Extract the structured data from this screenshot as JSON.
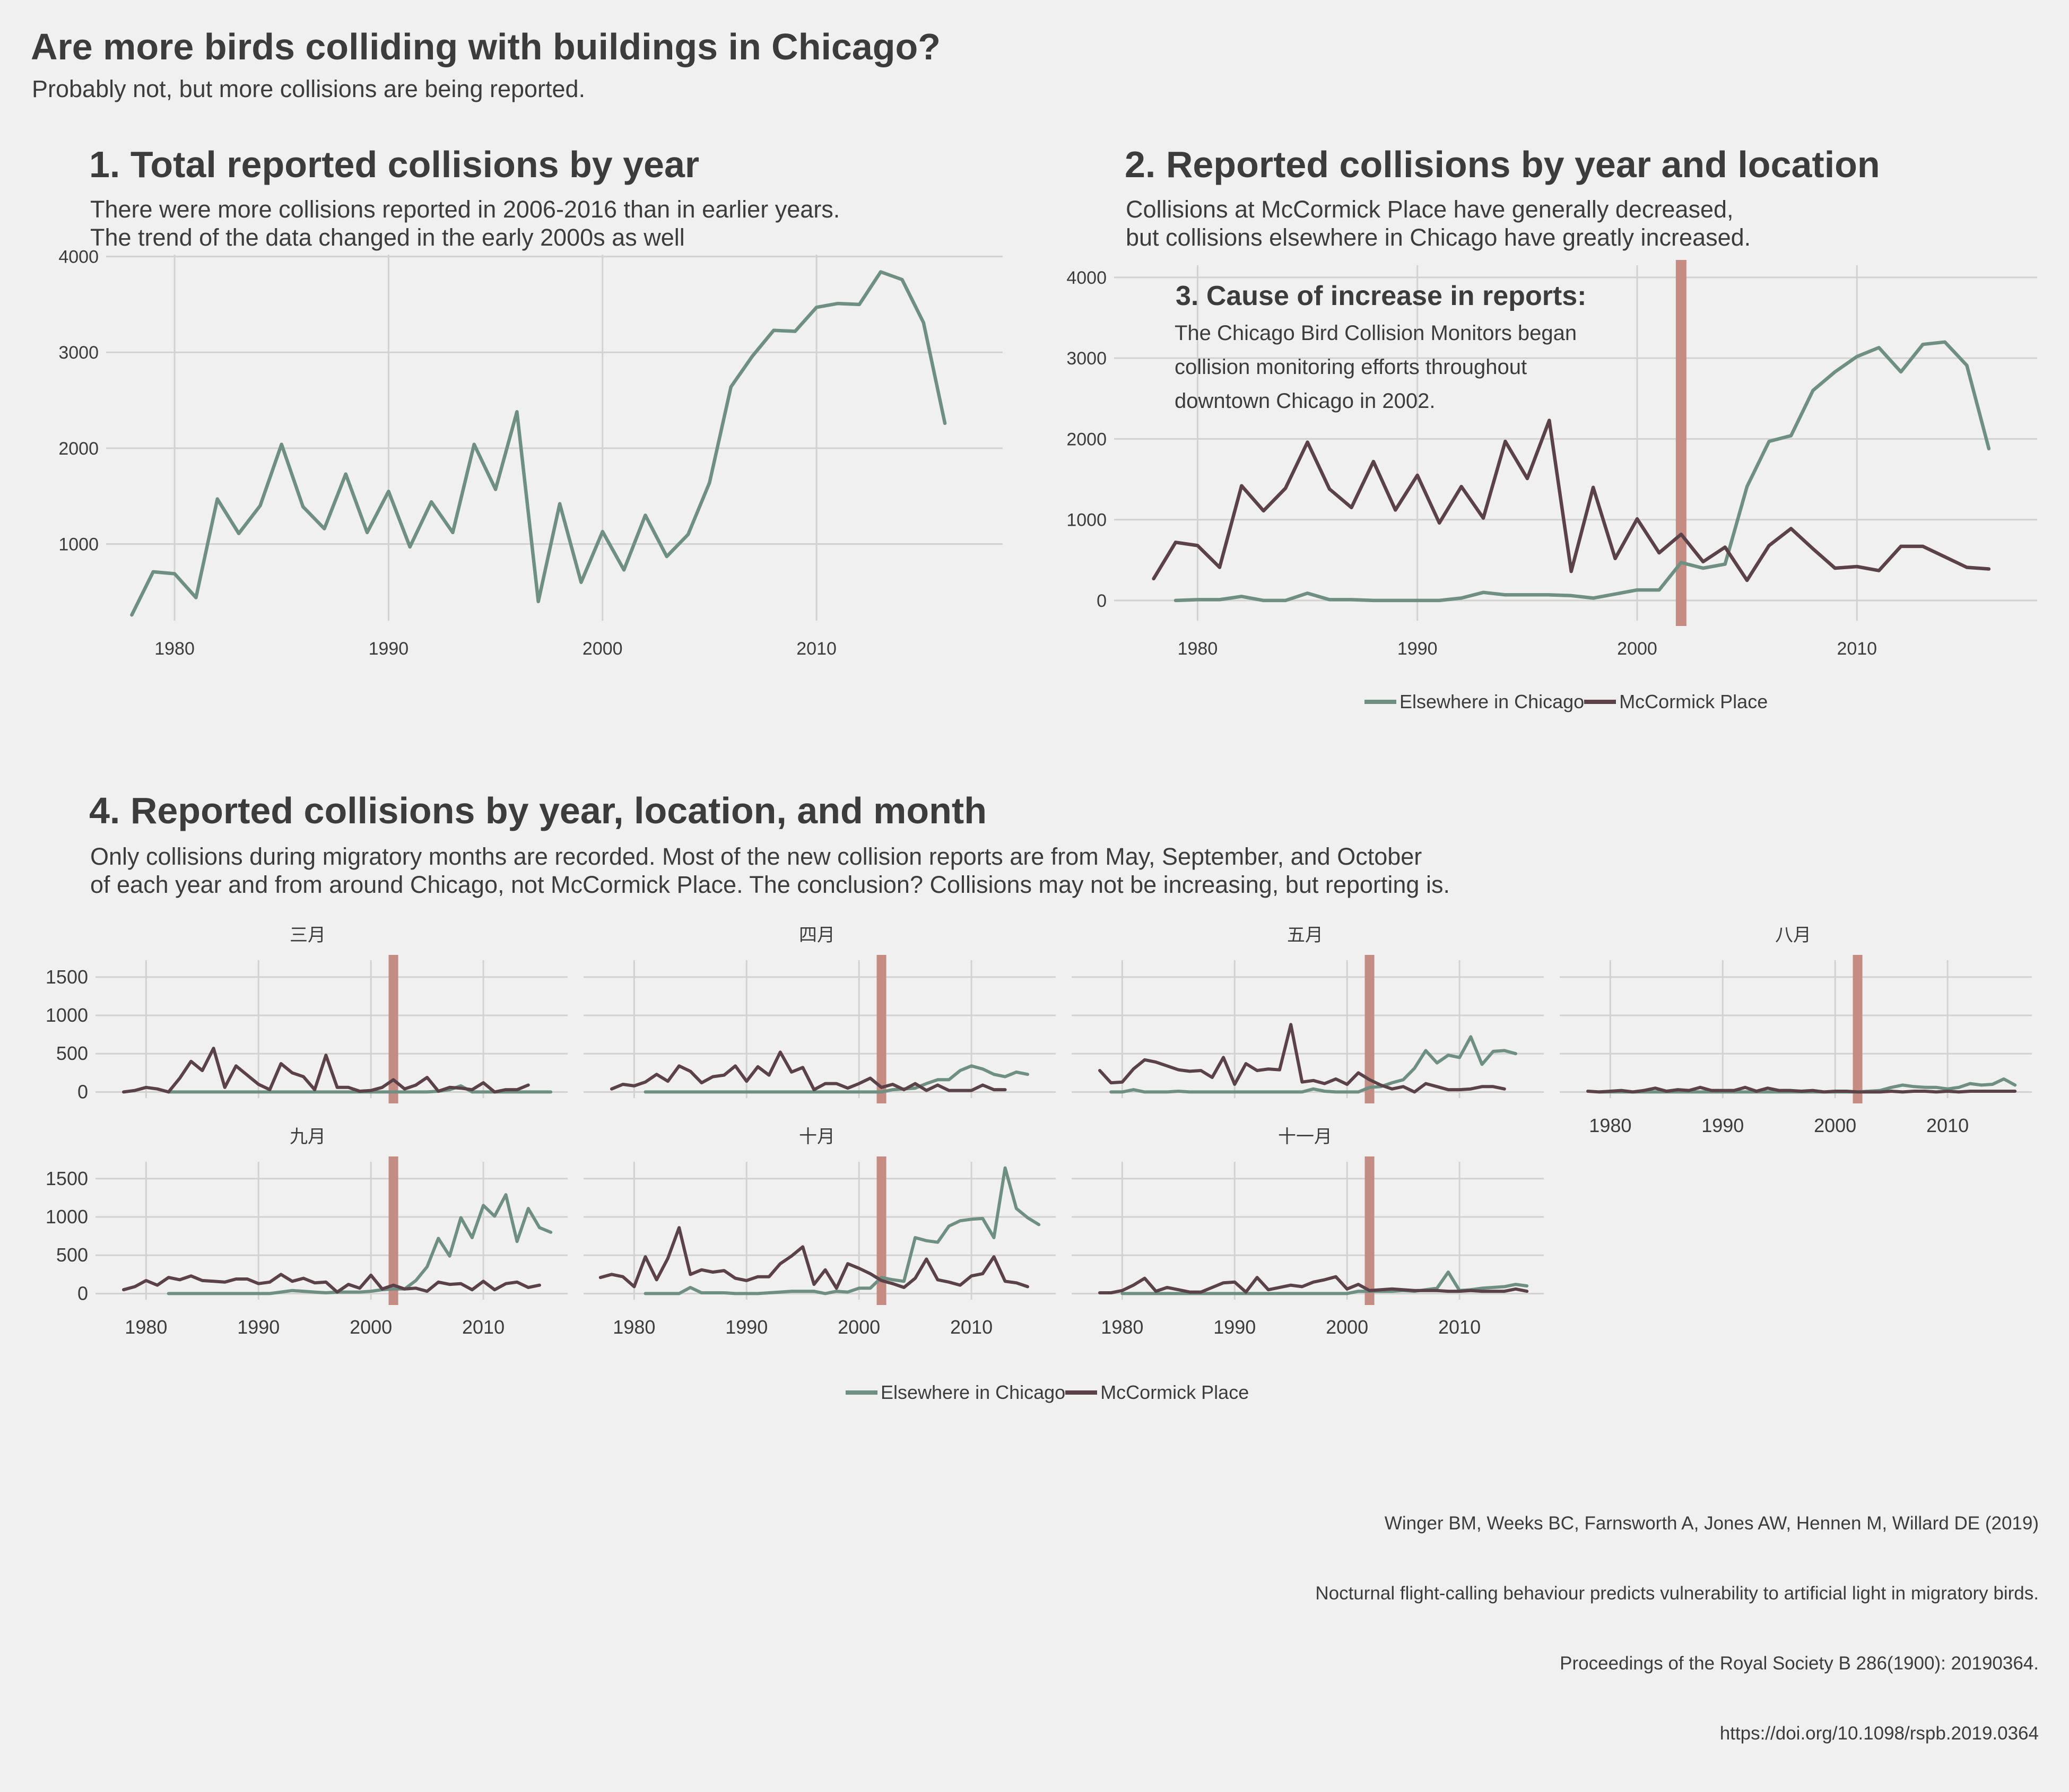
{
  "header": {
    "title": "Are more birds colliding with buildings in Chicago?",
    "subtitle": "Probably not, but more collisions are being reported."
  },
  "colors": {
    "elsewhere": "#6e8f82",
    "mccormick": "#5a4248",
    "highlight": "#c58c84",
    "grid": "#d2d2d2",
    "background": "#f0f0f0"
  },
  "panel1": {
    "title": "1. Total reported collisions by year",
    "subtitle_line1": "There were more collisions reported in 2006-2016 than in earlier years.",
    "subtitle_line2": "The trend of the data changed in the early 2000s as well"
  },
  "panel2": {
    "title": "2. Reported collisions by year and location",
    "subtitle_line1": "Collisions at McCormick Place have generally decreased,",
    "subtitle_line2": "but collisions elsewhere in Chicago have greatly increased.",
    "annotation_title": "3. Cause of increase in reports:",
    "annotation_line1": "The Chicago Bird Collision Monitors began",
    "annotation_line2": "collision monitoring efforts throughout",
    "annotation_line3": "downtown Chicago in 2002."
  },
  "panel4": {
    "title": "4. Reported collisions by year, location, and month",
    "subtitle_line1": "Only collisions during migratory months are recorded. Most of the new collision reports are from May, September, and October",
    "subtitle_line2": "of each year and from around Chicago, not McCormick Place. The conclusion? Collisions may not be increasing, but reporting is."
  },
  "legend": {
    "elsewhere": "Elsewhere in Chicago",
    "mccormick": "McCormick Place"
  },
  "citation": {
    "line1": "Winger BM, Weeks BC, Farnsworth A, Jones AW, Hennen M, Willard DE (2019)",
    "line2": "Nocturnal flight-calling behaviour predicts vulnerability to artificial light in migratory birds.",
    "line3": "Proceedings of the Royal Society B 286(1900): 20190364.",
    "line4": "https://doi.org/10.1098/rspb.2019.0364"
  },
  "chart_data": [
    {
      "id": "total",
      "type": "line",
      "x_ticks": [
        1980,
        1990,
        2000,
        2010
      ],
      "y_ticks": [
        1000,
        2000,
        3000,
        4000
      ],
      "xlim": [
        1976.8,
        2018.7
      ],
      "ylim": [
        200,
        4020
      ],
      "series": [
        {
          "key": "total",
          "x_start": 1978,
          "values": [
            260,
            710,
            690,
            440,
            1470,
            1110,
            1400,
            2040,
            1390,
            1160,
            1730,
            1120,
            1550,
            970,
            1440,
            1120,
            2040,
            1570,
            2380,
            400,
            1420,
            600,
            1130,
            730,
            1300,
            870,
            1100,
            1640,
            2640,
            2960,
            3230,
            3220,
            3470,
            3510,
            3500,
            3840,
            3760,
            3310,
            2260
          ]
        }
      ]
    },
    {
      "id": "by_location",
      "type": "line",
      "x_ticks": [
        1980,
        1990,
        2000,
        2010
      ],
      "y_ticks": [
        0,
        1000,
        2000,
        3000,
        4000
      ],
      "xlim": [
        1976.2,
        2018.2
      ],
      "ylim": [
        -250,
        4150
      ],
      "highlight_year": 2002,
      "series": [
        {
          "key": "elsewhere",
          "name": "Elsewhere in Chicago",
          "x_start": 1979,
          "values": [
            0,
            10,
            10,
            50,
            0,
            0,
            90,
            10,
            10,
            0,
            0,
            0,
            0,
            30,
            100,
            70,
            70,
            70,
            60,
            30,
            80,
            130,
            130,
            470,
            400,
            450,
            1410,
            1970,
            2040,
            2600,
            2830,
            3020,
            3130,
            2830,
            3170,
            3200,
            2910,
            1880
          ]
        },
        {
          "key": "mccormick",
          "name": "McCormick Place",
          "x_start": 1978,
          "values": [
            270,
            720,
            680,
            410,
            1420,
            1110,
            1390,
            1960,
            1380,
            1150,
            1720,
            1120,
            1550,
            960,
            1410,
            1020,
            1970,
            1510,
            2230,
            360,
            1400,
            520,
            1010,
            590,
            820,
            480,
            660,
            250,
            680,
            890,
            640,
            400,
            420,
            370,
            670,
            670,
            540,
            410,
            390
          ]
        }
      ]
    },
    {
      "id": "month_mar",
      "label": "三月",
      "type": "line",
      "x_ticks": [],
      "y_ticks": [
        0,
        500,
        1000,
        1500
      ],
      "xlim": [
        1975.5,
        2017.5
      ],
      "ylim": [
        -80,
        1720
      ],
      "highlight_year": 2002,
      "series": [
        {
          "key": "elsewhere",
          "name": "Elsewhere in Chicago",
          "x_start": 1982,
          "values": [
            0,
            0,
            0,
            0,
            0,
            0,
            0,
            0,
            0,
            0,
            0,
            0,
            0,
            0,
            0,
            0,
            0,
            0,
            0,
            0,
            0,
            0,
            0,
            0,
            10,
            30,
            80,
            0,
            0,
            0,
            0,
            0,
            0,
            0,
            0
          ]
        },
        {
          "key": "mccormick",
          "name": "McCormick Place",
          "x_start": 1978,
          "values": [
            0,
            20,
            60,
            40,
            0,
            180,
            400,
            280,
            570,
            60,
            340,
            220,
            100,
            30,
            370,
            250,
            200,
            30,
            480,
            60,
            60,
            10,
            20,
            60,
            160,
            40,
            90,
            190,
            10,
            60,
            50,
            30,
            120,
            0,
            30,
            30,
            90
          ]
        }
      ]
    },
    {
      "id": "month_apr",
      "label": "四月",
      "type": "line",
      "x_ticks": [],
      "y_ticks": [],
      "xlim": [
        1975.5,
        2017.5
      ],
      "ylim": [
        -80,
        1720
      ],
      "highlight_year": 2002,
      "series": [
        {
          "key": "elsewhere",
          "name": "Elsewhere in Chicago",
          "x_start": 1981,
          "values": [
            0,
            0,
            0,
            0,
            0,
            0,
            0,
            0,
            0,
            0,
            0,
            0,
            0,
            0,
            0,
            0,
            0,
            0,
            0,
            0,
            0,
            0,
            30,
            40,
            50,
            110,
            160,
            160,
            280,
            340,
            300,
            230,
            200,
            260,
            230
          ]
        },
        {
          "key": "mccormick",
          "name": "McCormick Place",
          "x_start": 1978,
          "values": [
            40,
            100,
            80,
            130,
            230,
            140,
            340,
            270,
            120,
            200,
            220,
            340,
            140,
            330,
            220,
            520,
            260,
            320,
            30,
            110,
            110,
            50,
            110,
            180,
            60,
            100,
            30,
            110,
            20,
            90,
            20,
            20,
            20,
            90,
            30,
            30
          ]
        }
      ]
    },
    {
      "id": "month_may",
      "label": "五月",
      "type": "line",
      "x_ticks": [],
      "y_ticks": [],
      "xlim": [
        1975.5,
        2017.5
      ],
      "ylim": [
        -80,
        1720
      ],
      "highlight_year": 2002,
      "series": [
        {
          "key": "elsewhere",
          "name": "Elsewhere in Chicago",
          "x_start": 1979,
          "values": [
            0,
            0,
            30,
            0,
            0,
            0,
            10,
            0,
            0,
            0,
            0,
            0,
            0,
            0,
            0,
            0,
            0,
            0,
            40,
            10,
            0,
            0,
            0,
            60,
            70,
            120,
            160,
            310,
            540,
            380,
            480,
            450,
            720,
            360,
            530,
            540,
            500
          ]
        },
        {
          "key": "mccormick",
          "name": "McCormick Place",
          "x_start": 1978,
          "values": [
            280,
            120,
            130,
            300,
            420,
            390,
            340,
            290,
            270,
            280,
            190,
            450,
            100,
            370,
            280,
            300,
            290,
            880,
            130,
            150,
            110,
            170,
            100,
            250,
            160,
            90,
            40,
            70,
            0,
            110,
            70,
            30,
            30,
            40,
            70,
            70,
            40
          ]
        }
      ]
    },
    {
      "id": "month_aug",
      "label": "八月",
      "type": "line",
      "x_ticks": [
        1980,
        1990,
        2000,
        2010
      ],
      "y_ticks": [],
      "xlim": [
        1975.5,
        2017.5
      ],
      "ylim": [
        -80,
        1720
      ],
      "highlight_year": 2002,
      "series": [
        {
          "key": "elsewhere",
          "name": "Elsewhere in Chicago",
          "x_start": 1979,
          "values": [
            0,
            0,
            0,
            0,
            0,
            0,
            0,
            0,
            0,
            0,
            0,
            0,
            0,
            0,
            0,
            0,
            0,
            0,
            0,
            0,
            0,
            0,
            0,
            0,
            10,
            20,
            60,
            90,
            70,
            60,
            60,
            40,
            60,
            110,
            90,
            100,
            170,
            90
          ]
        },
        {
          "key": "mccormick",
          "name": "McCormick Place",
          "x_start": 1978,
          "values": [
            10,
            0,
            10,
            20,
            0,
            20,
            50,
            10,
            30,
            20,
            60,
            20,
            20,
            20,
            60,
            10,
            50,
            20,
            20,
            10,
            20,
            0,
            10,
            10,
            0,
            0,
            0,
            10,
            0,
            10,
            10,
            0,
            10,
            0,
            10,
            10,
            10,
            10,
            10
          ]
        }
      ]
    },
    {
      "id": "month_sep",
      "label": "九月",
      "type": "line",
      "x_ticks": [
        1980,
        1990,
        2000,
        2010
      ],
      "y_ticks": [
        0,
        500,
        1000,
        1500
      ],
      "xlim": [
        1975.5,
        2017.5
      ],
      "ylim": [
        -80,
        1720
      ],
      "highlight_year": 2002,
      "series": [
        {
          "key": "elsewhere",
          "name": "Elsewhere in Chicago",
          "x_start": 1982,
          "values": [
            0,
            0,
            0,
            0,
            0,
            0,
            0,
            0,
            0,
            0,
            20,
            40,
            30,
            20,
            10,
            20,
            20,
            20,
            30,
            50,
            60,
            60,
            170,
            350,
            720,
            490,
            990,
            730,
            1150,
            1010,
            1290,
            680,
            1110,
            860,
            800
          ]
        },
        {
          "key": "mccormick",
          "name": "McCormick Place",
          "x_start": 1978,
          "values": [
            50,
            90,
            170,
            110,
            210,
            180,
            230,
            170,
            160,
            150,
            190,
            190,
            130,
            150,
            250,
            160,
            200,
            140,
            150,
            20,
            120,
            70,
            240,
            60,
            110,
            60,
            70,
            30,
            150,
            120,
            130,
            50,
            160,
            50,
            130,
            150,
            80,
            110
          ]
        }
      ]
    },
    {
      "id": "month_oct",
      "label": "十月",
      "type": "line",
      "x_ticks": [
        1980,
        1990,
        2000,
        2010
      ],
      "y_ticks": [],
      "xlim": [
        1975.5,
        2017.5
      ],
      "ylim": [
        -80,
        1720
      ],
      "highlight_year": 2002,
      "series": [
        {
          "key": "elsewhere",
          "name": "Elsewhere in Chicago",
          "x_start": 1981,
          "values": [
            0,
            0,
            0,
            0,
            80,
            10,
            10,
            10,
            0,
            0,
            0,
            10,
            20,
            30,
            30,
            30,
            0,
            30,
            20,
            70,
            70,
            210,
            180,
            160,
            730,
            690,
            670,
            880,
            950,
            970,
            980,
            730,
            1640,
            1110,
            990,
            900
          ]
        },
        {
          "key": "mccormick",
          "name": "McCormick Place",
          "x_start": 1977,
          "values": [
            210,
            250,
            220,
            90,
            480,
            180,
            460,
            860,
            250,
            310,
            280,
            300,
            200,
            170,
            220,
            220,
            390,
            490,
            610,
            120,
            310,
            70,
            390,
            330,
            260,
            170,
            130,
            80,
            200,
            450,
            180,
            150,
            110,
            230,
            260,
            480,
            160,
            140,
            90
          ]
        }
      ]
    },
    {
      "id": "month_nov",
      "label": "十一月",
      "type": "line",
      "x_ticks": [
        1980,
        1990,
        2000,
        2010
      ],
      "y_ticks": [],
      "xlim": [
        1975.5,
        2017.5
      ],
      "ylim": [
        -80,
        1720
      ],
      "highlight_year": 2002,
      "series": [
        {
          "key": "elsewhere",
          "name": "Elsewhere in Chicago",
          "x_start": 1980,
          "values": [
            0,
            0,
            0,
            0,
            0,
            0,
            0,
            0,
            0,
            0,
            0,
            0,
            0,
            0,
            0,
            0,
            0,
            0,
            0,
            0,
            0,
            30,
            30,
            30,
            30,
            40,
            30,
            50,
            70,
            280,
            40,
            50,
            70,
            80,
            90,
            120,
            100
          ]
        },
        {
          "key": "mccormick",
          "name": "McCormick Place",
          "x_start": 1978,
          "values": [
            10,
            10,
            40,
            110,
            200,
            30,
            80,
            50,
            20,
            20,
            80,
            140,
            150,
            20,
            210,
            50,
            80,
            110,
            90,
            150,
            180,
            220,
            60,
            120,
            40,
            50,
            60,
            50,
            40,
            40,
            40,
            30,
            30,
            40,
            30,
            30,
            30,
            60,
            30
          ]
        }
      ]
    }
  ]
}
